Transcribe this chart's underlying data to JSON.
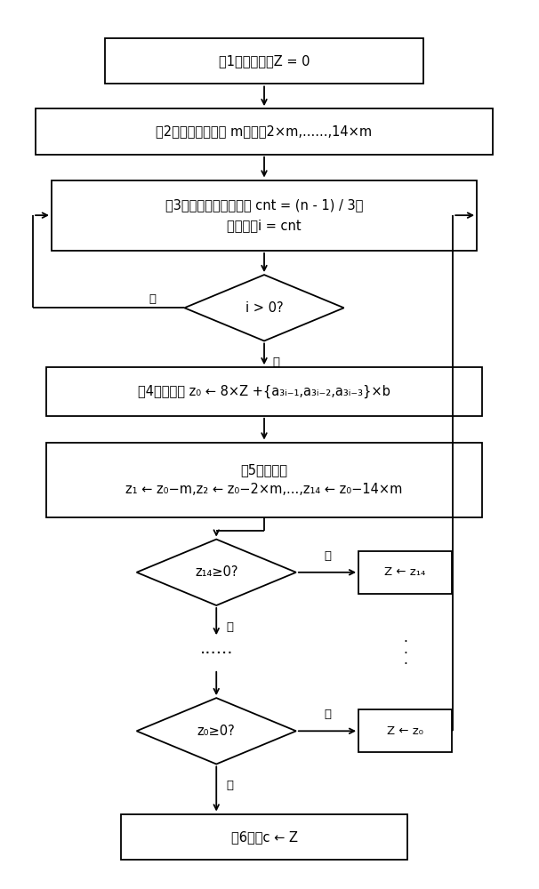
{
  "bg_color": "#ffffff",
  "lw": 1.3,
  "fs": 10.5,
  "sfs": 9.5,
  "step1_text": "第1步：初始化Z = 0",
  "step2_text": "第2步：预计算模数 m的倍数2×m,......,14×m",
  "step3_line1": "第3步：设置循环上限值 cnt = (n - 1) / 3，",
  "step3_line2": "循环变量i = cnt",
  "d1_text": "i > 0?",
  "step4_text": "第4步：计算 z₀ ← 8×Z +{a₃ᵢ₋₁,a₃ᵢ₋₂,a₃ᵢ₋₃}×b",
  "step5_line1": "第5步：计算",
  "step5_line2": "z₁ ← z₀−m,z₂ ← z₀−2×m,...,z₁₄ ← z₀−14×m",
  "d2_text": "z₁₄≥0?",
  "bz14_text": "Z ← z₁₄",
  "d3_text": "z₀≥0?",
  "bz0_text": "Z ← z₀",
  "step6_text": "第6步：c ← Z",
  "yes": "是",
  "no": "否"
}
